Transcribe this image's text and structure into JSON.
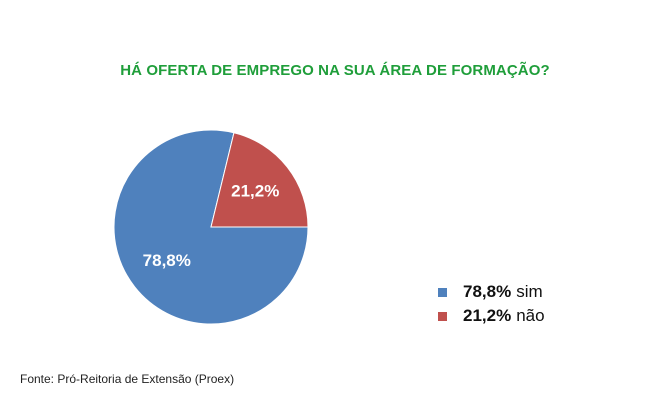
{
  "chart_data": {
    "type": "pie",
    "title": "HÁ OFERTA DE EMPREGO NA SUA ÁREA DE FORMAÇÃO?",
    "slices": [
      {
        "label": "sim",
        "value": 78.8,
        "display": "78,8%",
        "color": "#4f81bd"
      },
      {
        "label": "não",
        "value": 21.2,
        "display": "21,2%",
        "color": "#c0504d"
      }
    ],
    "legend": [
      {
        "value": "78,8%",
        "label": "sim",
        "color": "#4f81bd"
      },
      {
        "value": "21,2%",
        "label": "não",
        "color": "#c0504d"
      }
    ],
    "legend_position": "bottom-right"
  },
  "footer": {
    "source": "Fonte: Pró-Reitoria de Extensão (Proex)"
  }
}
